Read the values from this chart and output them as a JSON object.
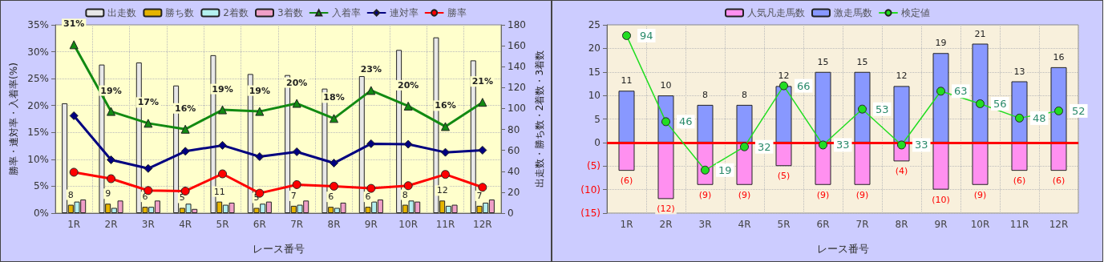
{
  "chart_data": [
    {
      "type": "bar",
      "categories": [
        "1R",
        "2R",
        "3R",
        "4R",
        "5R",
        "6R",
        "7R",
        "8R",
        "9R",
        "10R",
        "11R",
        "12R"
      ],
      "xlabel": "レース番号",
      "ylabel": "勝率・連対率・入着率(%)",
      "y2label": "出走数・勝ち数・2着数・3着数",
      "ylim": [
        0,
        35
      ],
      "yticks": [
        {
          "value": 0,
          "label": "0%"
        },
        {
          "value": 5,
          "label": "5%"
        },
        {
          "value": 10,
          "label": "10%"
        },
        {
          "value": 15,
          "label": "15%"
        },
        {
          "value": 20,
          "label": "20%"
        },
        {
          "value": 25,
          "label": "25%"
        },
        {
          "value": 30,
          "label": "30%"
        },
        {
          "value": 35,
          "label": "35%"
        }
      ],
      "y2lim": [
        0,
        180
      ],
      "y2ticks": [
        0,
        20,
        40,
        60,
        80,
        100,
        120,
        140,
        160,
        180
      ],
      "grid": true,
      "legend": "top",
      "series": [
        {
          "name": "出走数",
          "axis": "y2",
          "color": "#e8e8e8",
          "values": [
            105,
            142,
            144,
            122,
            151,
            133,
            132,
            119,
            131,
            156,
            168,
            146
          ]
        },
        {
          "name": "勝ち数",
          "axis": "y2",
          "color": "#e6b400",
          "values": [
            8,
            9,
            6,
            5,
            11,
            5,
            7,
            6,
            6,
            8,
            12,
            7
          ],
          "value_labels": [
            "8",
            "9",
            "6",
            "5",
            "11",
            "5",
            "7",
            "6",
            "6",
            "8",
            "12",
            "7"
          ]
        },
        {
          "name": "2着数",
          "axis": "y2",
          "color": "#b4f0f0",
          "values": [
            11,
            5,
            6,
            9,
            8,
            9,
            8,
            5,
            11,
            12,
            7,
            10
          ]
        },
        {
          "name": "3着数",
          "axis": "y2",
          "color": "#f0a0c8",
          "values": [
            13,
            12,
            12,
            4,
            10,
            11,
            12,
            10,
            13,
            11,
            8,
            13
          ]
        },
        {
          "name": "入着率",
          "type": "line",
          "color": "#128a12",
          "marker": "triangle",
          "values": [
            31.3,
            18.9,
            16.7,
            15.6,
            19.2,
            18.9,
            20.4,
            17.6,
            22.8,
            19.9,
            16.1,
            20.6
          ],
          "value_labels": [
            "31%",
            "19%",
            "17%",
            "16%",
            "19%",
            "19%",
            "20%",
            "18%",
            "23%",
            "20%",
            "16%",
            "21%"
          ]
        },
        {
          "name": "連対率",
          "type": "line",
          "color": "#000080",
          "marker": "diamond",
          "values": [
            18.1,
            9.9,
            8.3,
            11.5,
            12.6,
            10.5,
            11.4,
            9.3,
            12.9,
            12.8,
            11.3,
            11.7
          ]
        },
        {
          "name": "勝率",
          "type": "line",
          "color": "#ff0000",
          "marker": "circle",
          "values": [
            7.6,
            6.4,
            4.2,
            4.1,
            7.3,
            3.7,
            5.3,
            5.0,
            4.6,
            5.1,
            7.2,
            4.8
          ]
        }
      ]
    },
    {
      "type": "bar",
      "categories": [
        "1R",
        "2R",
        "3R",
        "4R",
        "5R",
        "6R",
        "7R",
        "8R",
        "9R",
        "10R",
        "11R",
        "12R"
      ],
      "xlabel": "レース番号",
      "stacked": true,
      "ylim": [
        -15,
        25
      ],
      "yticks": [
        {
          "value": -15,
          "label": "(15)"
        },
        {
          "value": -10,
          "label": "(10)"
        },
        {
          "value": -5,
          "label": "(5)"
        },
        0,
        5,
        10,
        15,
        20,
        25
      ],
      "y2lim": [
        -5,
        100
      ],
      "grid": true,
      "legend": "top",
      "ref_lines": [
        {
          "axis": "y",
          "value": 0,
          "color": "#ff0000"
        }
      ],
      "series": [
        {
          "name": "人気凡走馬数",
          "color": "#ff90f0",
          "values": [
            -6,
            -12,
            -9,
            -9,
            -5,
            -9,
            -9,
            -4,
            -10,
            -9,
            -6,
            -6
          ],
          "value_labels": [
            "(6)",
            "(12)",
            "(9)",
            "(9)",
            "(5)",
            "(9)",
            "(9)",
            "(4)",
            "(10)",
            "(9)",
            "(6)",
            "(6)"
          ]
        },
        {
          "name": "激走馬数",
          "color": "#8898ff",
          "values": [
            11,
            10,
            8,
            8,
            12,
            15,
            15,
            12,
            19,
            21,
            13,
            16
          ],
          "value_labels": [
            "11",
            "10",
            "8",
            "8",
            "12",
            "15",
            "15",
            "12",
            "19",
            "21",
            "13",
            "16"
          ]
        },
        {
          "name": "検定値",
          "type": "line",
          "axis": "y2",
          "color": "#22dd22",
          "marker": "circle",
          "values": [
            94,
            46,
            19,
            32,
            66,
            33,
            53,
            33,
            63,
            56,
            48,
            52
          ],
          "value_labels": [
            "94",
            "46",
            "19",
            "32",
            "66",
            "33",
            "53",
            "33",
            "63",
            "56",
            "48",
            "52"
          ]
        }
      ]
    }
  ]
}
